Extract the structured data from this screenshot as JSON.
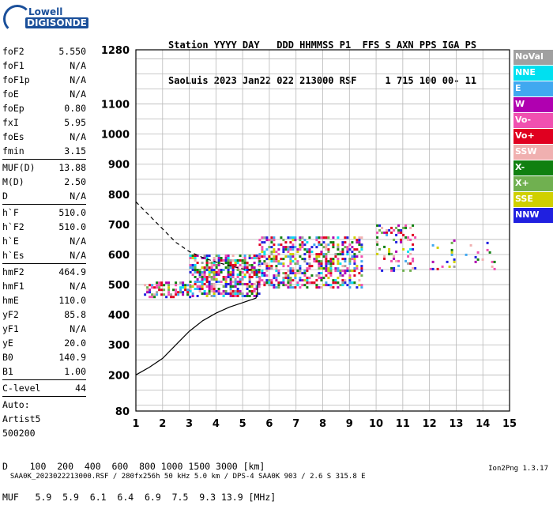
{
  "logo": {
    "line1": "Lowell",
    "line2": "DIGISONDE"
  },
  "header": {
    "line1": "Station YYYY DAY   DDD HHMMSS P1  FFS S AXN PPS IGA PS",
    "line2": "SaoLuis 2023 Jan22 022 213000 RSF     1 715 100 00- 11"
  },
  "params_group1": [
    {
      "k": "foF2",
      "v": "5.550"
    },
    {
      "k": "foF1",
      "v": "N/A"
    },
    {
      "k": "foF1p",
      "v": "N/A"
    },
    {
      "k": "foE",
      "v": "N/A"
    },
    {
      "k": "foEp",
      "v": "0.80"
    },
    {
      "k": "fxI",
      "v": "5.95"
    },
    {
      "k": "foEs",
      "v": "N/A"
    },
    {
      "k": "fmin",
      "v": "3.15"
    }
  ],
  "params_group2": [
    {
      "k": "MUF(D)",
      "v": "13.88"
    },
    {
      "k": "M(D)",
      "v": "2.50"
    },
    {
      "k": "D",
      "v": "N/A"
    }
  ],
  "params_group3": [
    {
      "k": "h`F",
      "v": "510.0"
    },
    {
      "k": "h`F2",
      "v": "510.0"
    },
    {
      "k": "h`E",
      "v": "N/A"
    },
    {
      "k": "h`Es",
      "v": "N/A"
    }
  ],
  "params_group4": [
    {
      "k": "hmF2",
      "v": "464.9"
    },
    {
      "k": "hmF1",
      "v": "N/A"
    },
    {
      "k": "hmE",
      "v": "110.0"
    },
    {
      "k": "yF2",
      "v": "85.8"
    },
    {
      "k": "yF1",
      "v": "N/A"
    },
    {
      "k": "yE",
      "v": "20.0"
    },
    {
      "k": "B0",
      "v": "140.9"
    },
    {
      "k": "B1",
      "v": "1.00"
    }
  ],
  "params_group5": [
    {
      "k": "C-level",
      "v": "44"
    }
  ],
  "autoscale": {
    "line1": "Auto:",
    "line2": "Artist5",
    "line3": "500200"
  },
  "legend": [
    {
      "label": "NoVal",
      "color": "#a0a0a0"
    },
    {
      "label": "NNE",
      "color": "#00e0f0"
    },
    {
      "label": "E",
      "color": "#40a8f0"
    },
    {
      "label": "W",
      "color": "#b000b0"
    },
    {
      "label": "Vo-",
      "color": "#f050b0"
    },
    {
      "label": "Vo+",
      "color": "#e00020"
    },
    {
      "label": "SSW",
      "color": "#f0b0b0"
    },
    {
      "label": "X-",
      "color": "#108010"
    },
    {
      "label": "X+",
      "color": "#70b050"
    },
    {
      "label": "SSE",
      "color": "#d0d000"
    },
    {
      "label": "NNW",
      "color": "#2020e0"
    }
  ],
  "muf_table": {
    "line1": "D    100  200  400  600  800 1000 1500 3000 [km]",
    "line2": "MUF   5.9  5.9  6.1  6.4  6.9  7.5  9.3 13.9 [MHz]"
  },
  "footer": {
    "left": "SAA0K_2023022213000.RSF / 280fx256h 50 kHz 5.0 km / DPS-4 SAA0K 903 / 2.6 S 315.8 E",
    "right": "Ion2Png 1.3.17"
  },
  "chart_data": {
    "type": "scatter",
    "xlim": [
      1,
      15
    ],
    "ylim": [
      80,
      1280
    ],
    "x_ticks": [
      1,
      2,
      3,
      4,
      5,
      6,
      7,
      8,
      9,
      10,
      11,
      12,
      13,
      14,
      15
    ],
    "y_ticks": [
      80,
      200,
      300,
      400,
      500,
      600,
      700,
      800,
      900,
      1000,
      1100,
      1280
    ],
    "grid": true,
    "echo_bands": [
      {
        "x_range": [
          1.3,
          3.0
        ],
        "y_range": [
          460,
          510
        ],
        "density": 0.5
      },
      {
        "x_range": [
          3.0,
          5.6
        ],
        "y_range": [
          465,
          600
        ],
        "density": 0.6
      },
      {
        "x_range": [
          5.6,
          9.5
        ],
        "y_range": [
          490,
          660
        ],
        "density": 0.45
      },
      {
        "x_range": [
          10.0,
          11.5
        ],
        "y_range": [
          550,
          700
        ],
        "density": 0.25
      },
      {
        "x_range": [
          12.0,
          14.5
        ],
        "y_range": [
          550,
          650
        ],
        "density": 0.08
      }
    ],
    "traces": [
      {
        "name": "virtual height",
        "style": "solid",
        "points": [
          [
            1.0,
            200
          ],
          [
            1.5,
            225
          ],
          [
            2.0,
            255
          ],
          [
            2.5,
            300
          ],
          [
            3.0,
            345
          ],
          [
            3.5,
            380
          ],
          [
            4.0,
            405
          ],
          [
            4.5,
            425
          ],
          [
            5.0,
            440
          ],
          [
            5.5,
            455
          ],
          [
            5.55,
            470
          ],
          [
            5.56,
            510
          ]
        ]
      },
      {
        "name": "profile extension",
        "style": "dashed",
        "points": [
          [
            1.0,
            775
          ],
          [
            1.5,
            730
          ],
          [
            2.0,
            685
          ],
          [
            2.5,
            640
          ],
          [
            3.0,
            610
          ],
          [
            3.5,
            590
          ],
          [
            4.0,
            575
          ],
          [
            4.5,
            563
          ],
          [
            5.0,
            552
          ],
          [
            5.55,
            547
          ]
        ]
      }
    ]
  }
}
